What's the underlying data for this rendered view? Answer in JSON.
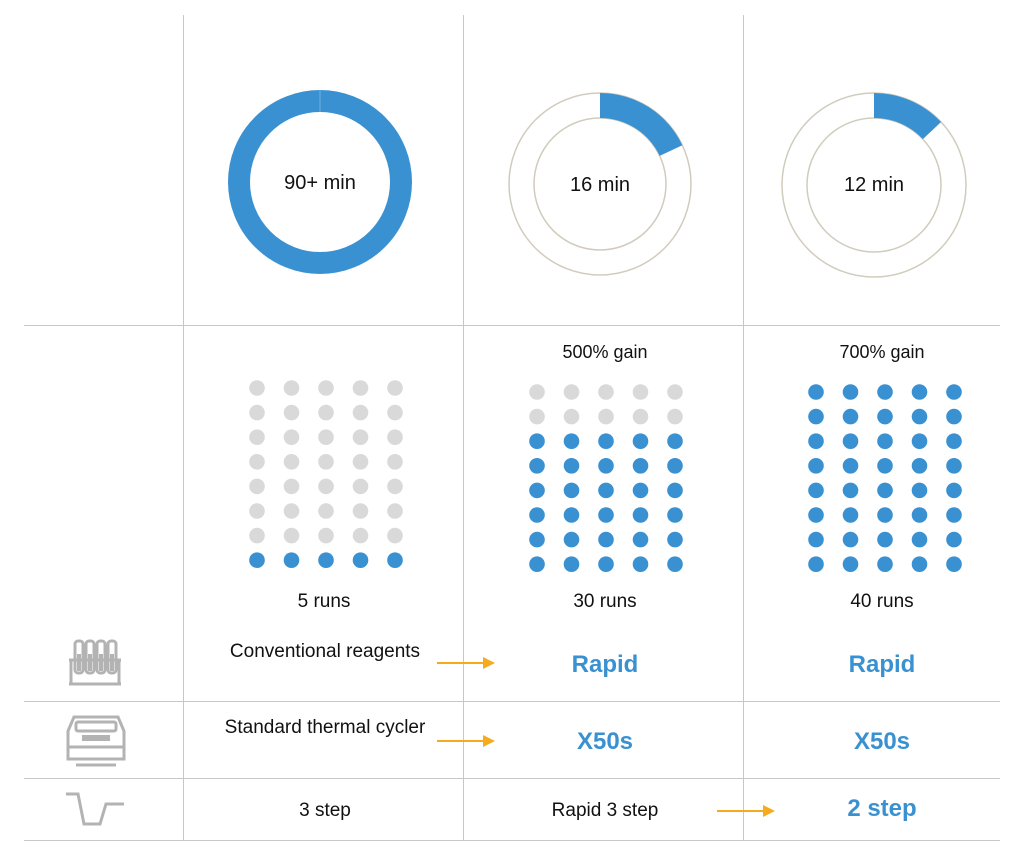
{
  "colors": {
    "accent": "#3a91d2",
    "inactive": "#d9d9d9",
    "ring": "#d0ccbd",
    "arrow": "#f5ab1e",
    "icon": "#b3b3b3",
    "divider": "#c7c7c7"
  },
  "columns": [
    {
      "time_label": "90+ min",
      "time_fraction": 1.0,
      "gain_label": "",
      "filled_dots": 5,
      "total_dots": 40,
      "runs_label": "5 runs"
    },
    {
      "time_label": "16 min",
      "time_fraction": 0.18,
      "gain_label": "500% gain",
      "filled_dots": 30,
      "total_dots": 40,
      "runs_label": "30 runs"
    },
    {
      "time_label": "12 min",
      "time_fraction": 0.13,
      "gain_label": "700% gain",
      "filled_dots": 40,
      "total_dots": 40,
      "runs_label": "40 runs"
    }
  ],
  "rows": [
    {
      "icon": "test-tube-rack-icon",
      "conventional": "Conventional reagents",
      "col2": "Rapid",
      "col3": "Rapid"
    },
    {
      "icon": "thermal-cycler-icon",
      "conventional": "Standard thermal cycler",
      "col2": "X50s",
      "col3": "X50s"
    },
    {
      "icon": "temperature-step-icon",
      "conventional": "3 step",
      "col2": "Rapid 3 step",
      "col3": "2 step"
    }
  ]
}
